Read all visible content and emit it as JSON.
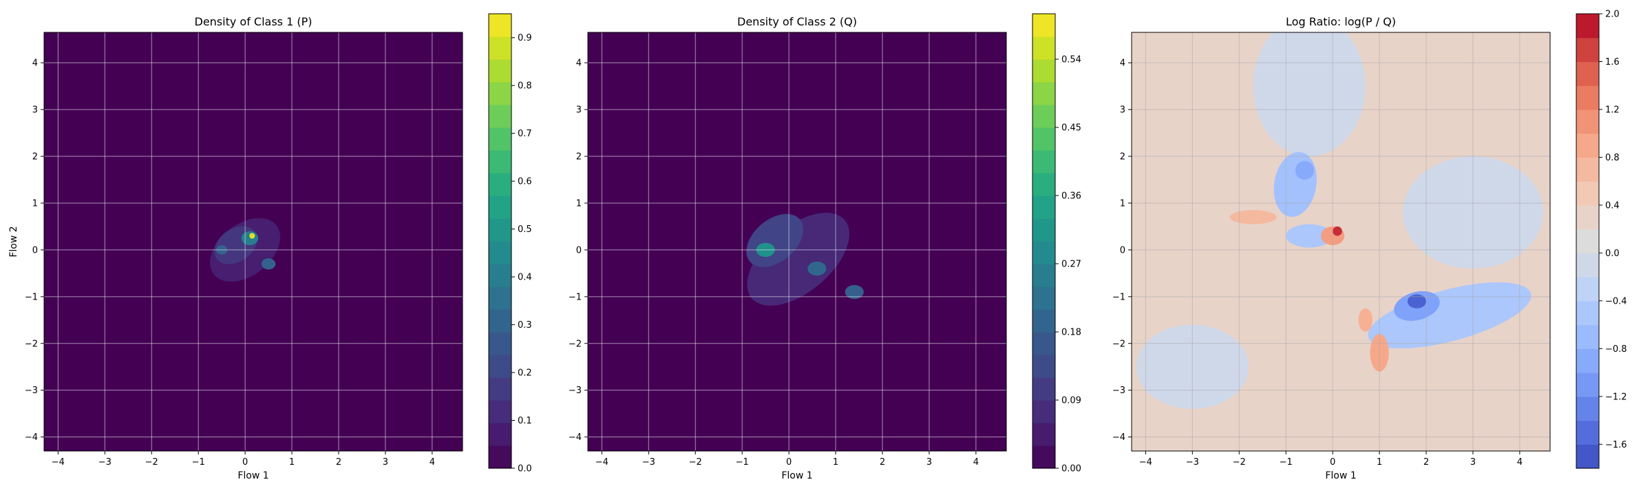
{
  "chart_data": [
    {
      "type": "heatmap",
      "subtype": "filled-contour",
      "title": "Density of Class 1 (P)",
      "xlabel": "Flow 1",
      "ylabel": "Flow 2",
      "xlim": [
        -4.3,
        4.65
      ],
      "ylim": [
        -4.3,
        4.65
      ],
      "xticks": [
        -4,
        -3,
        -2,
        -1,
        0,
        1,
        2,
        3,
        4
      ],
      "yticks": [
        -4,
        -3,
        -2,
        -1,
        0,
        1,
        2,
        3,
        4
      ],
      "grid": true,
      "colormap": "viridis",
      "colorbar": {
        "min": 0.0,
        "max": 0.95,
        "ticks": [
          "0.0",
          "0.1",
          "0.2",
          "0.3",
          "0.4",
          "0.5",
          "0.6",
          "0.7",
          "0.8",
          "0.9"
        ],
        "tick_values": [
          0,
          0.1,
          0.2,
          0.3,
          0.4,
          0.5,
          0.6,
          0.7,
          0.8,
          0.9
        ]
      },
      "features": [
        {
          "x": 0.0,
          "y": 0.0,
          "sx": 0.85,
          "sy": 0.55,
          "rot": -38,
          "value": 0.08
        },
        {
          "x": -0.2,
          "y": 0.1,
          "sx": 0.5,
          "sy": 0.35,
          "rot": -35,
          "value": 0.15
        },
        {
          "x": 0.1,
          "y": 0.25,
          "sx": 0.18,
          "sy": 0.15,
          "rot": 0,
          "value": 0.4
        },
        {
          "x": 0.15,
          "y": 0.3,
          "sx": 0.06,
          "sy": 0.06,
          "rot": 0,
          "value": 0.9
        },
        {
          "x": 0.5,
          "y": -0.3,
          "sx": 0.15,
          "sy": 0.12,
          "rot": 0,
          "value": 0.3
        },
        {
          "x": -0.5,
          "y": 0.0,
          "sx": 0.12,
          "sy": 0.1,
          "rot": 0,
          "value": 0.3
        }
      ]
    },
    {
      "type": "heatmap",
      "subtype": "filled-contour",
      "title": "Density of Class 2 (Q)",
      "xlabel": "Flow 1",
      "ylabel": "",
      "xlim": [
        -4.3,
        4.65
      ],
      "ylim": [
        -4.3,
        4.65
      ],
      "xticks": [
        -4,
        -3,
        -2,
        -1,
        0,
        1,
        2,
        3,
        4
      ],
      "yticks": [
        -4,
        -3,
        -2,
        -1,
        0,
        1,
        2,
        3,
        4
      ],
      "grid": true,
      "colormap": "viridis",
      "colorbar": {
        "min": 0.0,
        "max": 0.6,
        "ticks": [
          "0.00",
          "0.09",
          "0.18",
          "0.27",
          "0.36",
          "0.45",
          "0.54"
        ],
        "tick_values": [
          0,
          0.09,
          0.18,
          0.27,
          0.36,
          0.45,
          0.54
        ]
      },
      "features": [
        {
          "x": 0.2,
          "y": -0.2,
          "sx": 1.3,
          "sy": 0.7,
          "rot": -40,
          "value": 0.07
        },
        {
          "x": -0.3,
          "y": 0.2,
          "sx": 0.7,
          "sy": 0.45,
          "rot": -40,
          "value": 0.12
        },
        {
          "x": -0.5,
          "y": 0.0,
          "sx": 0.2,
          "sy": 0.15,
          "rot": 0,
          "value": 0.3
        },
        {
          "x": 0.6,
          "y": -0.4,
          "sx": 0.2,
          "sy": 0.15,
          "rot": 0,
          "value": 0.2
        },
        {
          "x": 1.4,
          "y": -0.9,
          "sx": 0.2,
          "sy": 0.15,
          "rot": 0,
          "value": 0.18
        }
      ]
    },
    {
      "type": "heatmap",
      "subtype": "filled-contour",
      "title": "Log Ratio: log(P / Q)",
      "xlabel": "Flow 1",
      "ylabel": "",
      "xlim": [
        -4.3,
        4.65
      ],
      "ylim": [
        -4.3,
        4.65
      ],
      "xticks": [
        -4,
        -3,
        -2,
        -1,
        0,
        1,
        2,
        3,
        4
      ],
      "yticks": [
        -4,
        -3,
        -2,
        -1,
        0,
        1,
        2,
        3,
        4
      ],
      "grid": true,
      "colormap": "coolwarm",
      "background_value": 0.3,
      "colorbar": {
        "min": -1.8,
        "max": 2.0,
        "ticks": [
          "−1.6",
          "−1.2",
          "−0.8",
          "−0.4",
          "0.0",
          "0.4",
          "0.8",
          "1.2",
          "1.6",
          "2.0"
        ],
        "tick_values": [
          -1.6,
          -1.2,
          -0.8,
          -0.4,
          0.0,
          0.4,
          0.8,
          1.2,
          1.6,
          2.0
        ]
      },
      "features": [
        {
          "x": -0.5,
          "y": 3.5,
          "sx": 1.2,
          "sy": 1.5,
          "rot": 0,
          "value": -0.1
        },
        {
          "x": -0.8,
          "y": 1.4,
          "sx": 0.45,
          "sy": 0.7,
          "rot": 10,
          "value": -0.6
        },
        {
          "x": -0.6,
          "y": 1.7,
          "sx": 0.2,
          "sy": 0.2,
          "rot": 0,
          "value": -0.9
        },
        {
          "x": -0.5,
          "y": 0.3,
          "sx": 0.5,
          "sy": 0.25,
          "rot": 0,
          "value": -0.5
        },
        {
          "x": 2.5,
          "y": -1.4,
          "sx": 1.8,
          "sy": 0.55,
          "rot": -15,
          "value": -0.5
        },
        {
          "x": 1.8,
          "y": -1.2,
          "sx": 0.5,
          "sy": 0.3,
          "rot": -15,
          "value": -1.0
        },
        {
          "x": 1.8,
          "y": -1.1,
          "sx": 0.2,
          "sy": 0.15,
          "rot": 0,
          "value": -1.6
        },
        {
          "x": 3.0,
          "y": 0.8,
          "sx": 1.5,
          "sy": 1.2,
          "rot": 0,
          "value": -0.1
        },
        {
          "x": -3.0,
          "y": -2.5,
          "sx": 1.2,
          "sy": 0.9,
          "rot": 0,
          "value": -0.1
        },
        {
          "x": 0.0,
          "y": 0.3,
          "sx": 0.25,
          "sy": 0.2,
          "rot": 0,
          "value": 1.0
        },
        {
          "x": 0.1,
          "y": 0.4,
          "sx": 0.1,
          "sy": 0.1,
          "rot": 0,
          "value": 1.8
        },
        {
          "x": -1.7,
          "y": 0.7,
          "sx": 0.5,
          "sy": 0.15,
          "rot": 0,
          "value": 0.7
        },
        {
          "x": 1.0,
          "y": -2.2,
          "sx": 0.2,
          "sy": 0.4,
          "rot": 0,
          "value": 0.9
        },
        {
          "x": 0.7,
          "y": -1.5,
          "sx": 0.15,
          "sy": 0.25,
          "rot": 0,
          "value": 0.8
        }
      ]
    }
  ]
}
